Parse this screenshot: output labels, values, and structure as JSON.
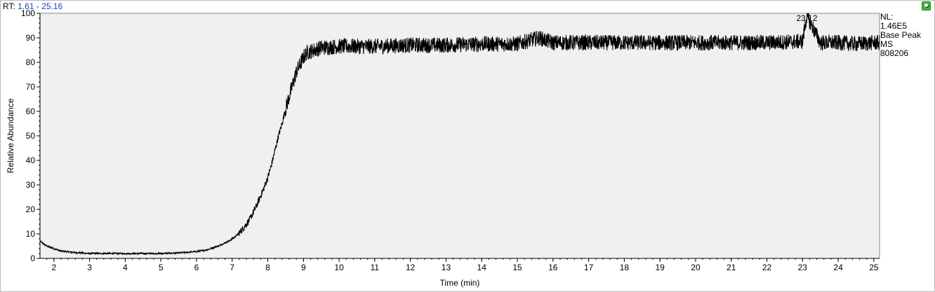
{
  "header": {
    "rt_prefix": "RT:",
    "rt_range": "1.61 - 25.16"
  },
  "info": {
    "nl_label": "NL:",
    "nl_value": "1.46E5",
    "scan_type": "Base Peak",
    "ms_label": "MS",
    "file_name": "808206"
  },
  "colors": {
    "plot_background": "#f0f0f0",
    "trace": "#000000",
    "rt_range_text": "#1f3fbf",
    "pin_button": "#3db83d"
  },
  "icons": {
    "pin": "pin-icon"
  },
  "chart_data": {
    "type": "line",
    "title": "",
    "xlabel": "Time (min)",
    "ylabel": "Relative Abundance",
    "xlim": [
      1.61,
      25.16
    ],
    "ylim": [
      0,
      100
    ],
    "x_ticks": [
      2,
      3,
      4,
      5,
      6,
      7,
      8,
      9,
      10,
      11,
      12,
      13,
      14,
      15,
      16,
      17,
      18,
      19,
      20,
      21,
      22,
      23,
      24,
      25
    ],
    "x_tick_labels": [
      "2",
      "3",
      "4",
      "5",
      "6",
      "7",
      "8",
      "9",
      "10",
      "11",
      "12",
      "13",
      "14",
      "15",
      "16",
      "17",
      "18",
      "19",
      "20",
      "21",
      "22",
      "23",
      "24",
      "25"
    ],
    "y_ticks": [
      0,
      10,
      20,
      30,
      40,
      50,
      60,
      70,
      80,
      90,
      100
    ],
    "y_tick_labels": [
      "0",
      "10",
      "20",
      "30",
      "40",
      "50",
      "60",
      "70",
      "80",
      "90",
      "100"
    ],
    "grid": false,
    "series": [
      {
        "x": [
          1.61,
          1.8,
          2.0,
          2.2,
          2.5,
          3.0,
          3.5,
          4.0,
          4.5,
          5.0,
          5.5,
          6.0,
          6.3,
          6.6,
          6.9,
          7.1,
          7.3,
          7.5,
          7.7,
          7.9,
          8.0,
          8.1,
          8.2,
          8.3,
          8.4,
          8.5,
          8.6,
          8.7,
          8.8,
          8.9,
          9.0,
          9.1,
          9.3,
          9.5,
          10.0,
          11.0,
          12.0,
          13.0,
          14.0,
          15.0,
          15.6,
          16.0,
          17.0,
          18.0,
          19.0,
          20.0,
          21.0,
          22.0,
          23.0,
          23.12,
          23.5,
          24.0,
          24.5,
          25.0,
          25.16
        ],
        "y": [
          7,
          5,
          4,
          3,
          2.5,
          2,
          2,
          2,
          2,
          2,
          2.2,
          2.8,
          3.5,
          5,
          7,
          9,
          12,
          16,
          22,
          29,
          33,
          38,
          44,
          50,
          55,
          61,
          66,
          71,
          76,
          79,
          82,
          84,
          85,
          86,
          86.5,
          86.5,
          87,
          87,
          87.5,
          87.5,
          90,
          88,
          88,
          88,
          88,
          88,
          88,
          88,
          88.5,
          99,
          88,
          88,
          87.5,
          88,
          88
        ]
      }
    ],
    "annotations": [
      {
        "x": 23.12,
        "y": 100,
        "text": "23.12"
      }
    ]
  }
}
